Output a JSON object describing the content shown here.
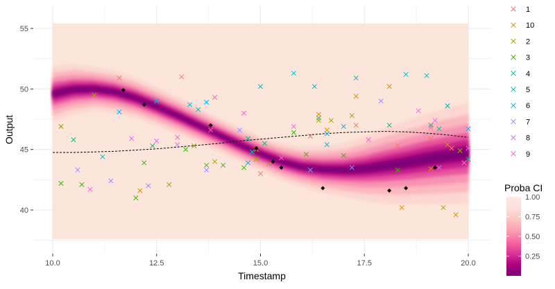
{
  "chart_data": {
    "type": "scatter",
    "xlabel": "Timestamp",
    "ylabel": "Output",
    "xlim": [
      10.0,
      20.0
    ],
    "ylim": [
      37.5,
      56.0
    ],
    "x_ticks": [
      10.0,
      12.5,
      15.0,
      17.5,
      20.0
    ],
    "x_tick_labels": [
      "10.0",
      "12.5",
      "15.0",
      "17.5",
      "20.0"
    ],
    "y_ticks": [
      40,
      45,
      50,
      55
    ],
    "y_tick_labels": [
      "40",
      "45",
      "50",
      "55"
    ],
    "grid": true,
    "legend_placement": "right",
    "colors": {
      "panel": "#ffffff",
      "gridline": "#ebebeb",
      "ci_high": "#fce6dc",
      "ci_low": "#7a0177",
      "observed": "#000000",
      "dashed": "#000000",
      "tick_text": "#4d4d4d",
      "axis_title": "#000000"
    },
    "series": [
      {
        "name": "1",
        "color": "#f8766d",
        "points": [
          [
            11.6,
            50.9
          ],
          [
            13.1,
            51.0
          ],
          [
            15.0,
            43.0
          ],
          [
            16.2,
            46.1
          ],
          [
            17.3,
            47.0
          ],
          [
            18.3,
            45.3
          ],
          [
            19.1,
            45.9
          ],
          [
            19.6,
            45.1
          ]
        ]
      },
      {
        "name": "10",
        "color": "#d89000",
        "points": [
          [
            10.2,
            46.9
          ],
          [
            12.1,
            41.6
          ],
          [
            14.9,
            45.0
          ],
          [
            16.4,
            47.9
          ],
          [
            16.6,
            46.6
          ],
          [
            17.3,
            49.4
          ],
          [
            18.1,
            50.2
          ],
          [
            18.4,
            40.2
          ],
          [
            19.1,
            43.4
          ],
          [
            19.5,
            45.4
          ],
          [
            19.7,
            39.6
          ]
        ]
      },
      {
        "name": "2",
        "color": "#a3a500",
        "points": [
          [
            10.2,
            46.9
          ],
          [
            11.0,
            49.5
          ],
          [
            12.8,
            42.1
          ],
          [
            13.4,
            45.3
          ],
          [
            13.9,
            44.0
          ],
          [
            14.9,
            44.2
          ],
          [
            15.2,
            43.8
          ],
          [
            16.4,
            47.4
          ],
          [
            16.7,
            47.4
          ],
          [
            17.2,
            47.8
          ],
          [
            19.4,
            40.2
          ],
          [
            19.8,
            44.9
          ]
        ]
      },
      {
        "name": "3",
        "color": "#39b600",
        "points": [
          [
            10.2,
            42.2
          ],
          [
            10.7,
            42.1
          ],
          [
            12.0,
            41.0
          ],
          [
            12.2,
            43.9
          ],
          [
            13.2,
            45.0
          ],
          [
            13.7,
            43.7
          ],
          [
            14.1,
            43.7
          ],
          [
            14.6,
            43.5
          ],
          [
            15.8,
            46.4
          ],
          [
            16.1,
            44.6
          ],
          [
            17.0,
            44.5
          ],
          [
            18.3,
            43.3
          ]
        ]
      },
      {
        "name": "4",
        "color": "#00bf7d",
        "points": [
          [
            10.5,
            45.8
          ],
          [
            12.4,
            45.3
          ],
          [
            14.7,
            45.9
          ],
          [
            15.1,
            45.5
          ],
          [
            16.4,
            47.6
          ],
          [
            18.1,
            47.0
          ],
          [
            19.1,
            47.0
          ],
          [
            19.3,
            46.7
          ],
          [
            19.5,
            48.6
          ],
          [
            20.0,
            44.2
          ]
        ]
      },
      {
        "name": "5",
        "color": "#00bfc4",
        "points": [
          [
            11.2,
            44.4
          ],
          [
            13.3,
            48.7
          ],
          [
            13.5,
            48.3
          ],
          [
            14.8,
            44.8
          ],
          [
            15.0,
            50.2
          ],
          [
            15.8,
            51.3
          ],
          [
            16.3,
            50.2
          ],
          [
            16.6,
            45.4
          ],
          [
            17.3,
            50.9
          ],
          [
            18.5,
            51.2
          ],
          [
            19.0,
            51.1
          ],
          [
            19.5,
            48.6
          ]
        ]
      },
      {
        "name": "6",
        "color": "#00b0f6",
        "points": [
          [
            11.6,
            48.1
          ],
          [
            12.5,
            49.0
          ],
          [
            13.7,
            48.9
          ],
          [
            14.7,
            43.9
          ],
          [
            16.6,
            46.3
          ],
          [
            17.0,
            46.9
          ],
          [
            20.0,
            46.7
          ]
        ]
      },
      {
        "name": "7",
        "color": "#9590ff",
        "points": [
          [
            10.6,
            43.3
          ],
          [
            11.4,
            42.4
          ],
          [
            12.3,
            42.0
          ],
          [
            13.7,
            43.3
          ],
          [
            14.5,
            46.6
          ],
          [
            16.2,
            43.3
          ],
          [
            17.2,
            43.5
          ],
          [
            17.9,
            49.0
          ]
        ]
      },
      {
        "name": "8",
        "color": "#e76bf3",
        "points": [
          [
            10.9,
            41.7
          ],
          [
            11.9,
            45.9
          ],
          [
            12.5,
            45.7
          ],
          [
            13.0,
            45.4
          ],
          [
            15.8,
            46.9
          ],
          [
            18.8,
            48.2
          ],
          [
            19.2,
            47.4
          ],
          [
            19.3,
            43.5
          ],
          [
            19.9,
            43.9
          ],
          [
            20.0,
            45.1
          ]
        ]
      },
      {
        "name": "9",
        "color": "#ff62bc",
        "points": [
          [
            13.0,
            46.0
          ],
          [
            13.8,
            46.6
          ],
          [
            13.9,
            49.3
          ],
          [
            14.6,
            48.0
          ],
          [
            15.5,
            44.3
          ],
          [
            17.6,
            45.8
          ],
          [
            19.1,
            46.8
          ],
          [
            19.9,
            43.9
          ]
        ]
      }
    ],
    "observed_points": [
      [
        11.7,
        49.9
      ],
      [
        12.2,
        48.7
      ],
      [
        13.8,
        47.0
      ],
      [
        14.9,
        45.1
      ],
      [
        15.3,
        44.0
      ],
      [
        15.5,
        43.5
      ],
      [
        16.5,
        41.8
      ],
      [
        18.1,
        41.6
      ],
      [
        18.5,
        41.8
      ],
      [
        19.2,
        43.5
      ]
    ],
    "mean_curve": [
      [
        10.0,
        49.6
      ],
      [
        10.5,
        49.95
      ],
      [
        11.0,
        50.0
      ],
      [
        11.5,
        49.75
      ],
      [
        12.0,
        49.25
      ],
      [
        12.5,
        48.55
      ],
      [
        13.0,
        47.8
      ],
      [
        13.5,
        47.0
      ],
      [
        14.0,
        46.2
      ],
      [
        14.5,
        45.4
      ],
      [
        15.0,
        44.65
      ],
      [
        15.5,
        44.0
      ],
      [
        16.0,
        43.55
      ],
      [
        16.5,
        43.35
      ],
      [
        17.0,
        43.3
      ],
      [
        17.5,
        43.4
      ],
      [
        18.0,
        43.65
      ],
      [
        18.5,
        43.9
      ],
      [
        19.0,
        44.2
      ],
      [
        19.5,
        44.45
      ],
      [
        20.0,
        44.7
      ]
    ],
    "ci_halfwidth": [
      [
        10.0,
        0.9
      ],
      [
        11.0,
        0.7
      ],
      [
        12.0,
        0.65
      ],
      [
        13.0,
        0.6
      ],
      [
        14.0,
        0.55
      ],
      [
        15.0,
        0.55
      ],
      [
        16.0,
        0.65
      ],
      [
        17.0,
        0.85
      ],
      [
        18.0,
        1.2
      ],
      [
        19.0,
        1.45
      ],
      [
        20.0,
        1.6
      ]
    ],
    "dashed_curve": [
      [
        10.0,
        44.75
      ],
      [
        10.5,
        44.75
      ],
      [
        11.0,
        44.8
      ],
      [
        11.5,
        44.85
      ],
      [
        12.0,
        44.95
      ],
      [
        12.5,
        45.05
      ],
      [
        13.0,
        45.2
      ],
      [
        13.5,
        45.35
      ],
      [
        14.0,
        45.5
      ],
      [
        14.5,
        45.7
      ],
      [
        15.0,
        45.85
      ],
      [
        15.5,
        46.0
      ],
      [
        16.0,
        46.15
      ],
      [
        16.5,
        46.3
      ],
      [
        17.0,
        46.4
      ],
      [
        17.5,
        46.45
      ],
      [
        18.0,
        46.5
      ],
      [
        18.5,
        46.45
      ],
      [
        19.0,
        46.35
      ],
      [
        19.5,
        46.2
      ],
      [
        20.0,
        46.0
      ]
    ],
    "colorbar": {
      "title": "Proba CI",
      "ticks": [
        0.25,
        0.5,
        0.75,
        1.0
      ],
      "tick_labels": [
        "0.25",
        "0.50",
        "0.75",
        "1.00"
      ],
      "range": [
        0.0,
        1.0
      ],
      "colors": [
        "#7a0177",
        "#ae017e",
        "#dd3497",
        "#f768a1",
        "#fa9fb5",
        "#fcc5c0",
        "#fde0dd",
        "#fde8e1"
      ]
    }
  }
}
